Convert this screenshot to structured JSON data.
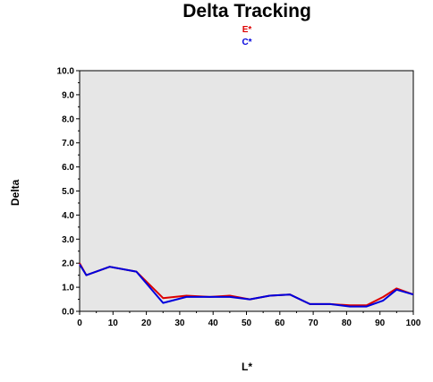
{
  "chart_data": {
    "type": "line",
    "title": "Delta Tracking",
    "xlabel": "L*",
    "ylabel": "Delta",
    "xlim": [
      0,
      100
    ],
    "ylim": [
      0,
      10
    ],
    "x_ticks": [
      "0",
      "10",
      "20",
      "30",
      "40",
      "50",
      "60",
      "70",
      "80",
      "90",
      "100"
    ],
    "y_ticks": [
      "0.0",
      "1.0",
      "2.0",
      "3.0",
      "4.0",
      "5.0",
      "6.0",
      "7.0",
      "8.0",
      "9.0",
      "10.0"
    ],
    "grid": false,
    "legend": "top-center",
    "background": "#e6e6e6",
    "series": [
      {
        "name": "E*",
        "color": "#dd0000",
        "x": [
          0,
          2,
          9,
          17,
          25,
          32,
          39,
          45,
          51,
          57,
          63,
          69,
          75,
          81,
          86,
          91,
          95,
          100
        ],
        "y": [
          2.0,
          1.5,
          1.85,
          1.65,
          0.55,
          0.65,
          0.6,
          0.65,
          0.5,
          0.65,
          0.7,
          0.3,
          0.3,
          0.25,
          0.25,
          0.6,
          0.95,
          0.7
        ]
      },
      {
        "name": "C*",
        "color": "#0000dd",
        "x": [
          0,
          2,
          9,
          17,
          25,
          32,
          39,
          45,
          51,
          57,
          63,
          69,
          75,
          81,
          86,
          91,
          95,
          100
        ],
        "y": [
          1.95,
          1.5,
          1.85,
          1.65,
          0.35,
          0.6,
          0.6,
          0.6,
          0.5,
          0.65,
          0.7,
          0.3,
          0.3,
          0.2,
          0.2,
          0.45,
          0.9,
          0.7
        ]
      }
    ]
  }
}
